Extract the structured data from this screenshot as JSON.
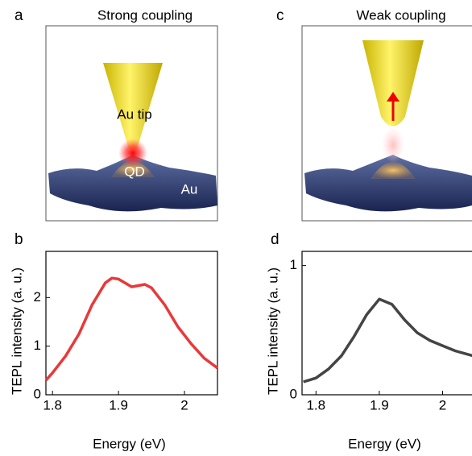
{
  "panels": {
    "a": "a",
    "c": "c",
    "b": "b",
    "d": "d"
  },
  "illustrations": {
    "strong_title": "Strong coupling",
    "weak_title": "Weak coupling",
    "tip_label": "Au tip",
    "qd_label": "QD",
    "au_label": "Au"
  },
  "chart_data": [
    {
      "type": "line",
      "x_label": "Energy (eV)",
      "y_label": "TEPL intensity (a. u.)",
      "color": "#e8393a",
      "x": [
        1.79,
        1.8,
        1.82,
        1.84,
        1.86,
        1.88,
        1.89,
        1.9,
        1.92,
        1.94,
        1.95,
        1.97,
        1.99,
        2.01,
        2.03,
        2.05
      ],
      "values": [
        0.3,
        0.45,
        0.8,
        1.25,
        1.85,
        2.3,
        2.4,
        2.38,
        2.22,
        2.27,
        2.2,
        1.85,
        1.4,
        1.05,
        0.75,
        0.55
      ],
      "xlim": [
        1.79,
        2.05
      ],
      "ylim": [
        0,
        2.95
      ],
      "xticks": [
        1.8,
        1.9,
        2.0
      ],
      "yticks": [
        0,
        1,
        2
      ]
    },
    {
      "type": "line",
      "x_label": "Energy (eV)",
      "y_label": "TEPL intensity (a. u.)",
      "color": "#444444",
      "x": [
        1.78,
        1.8,
        1.82,
        1.84,
        1.86,
        1.88,
        1.9,
        1.92,
        1.94,
        1.96,
        1.98,
        2.0,
        2.02,
        2.049
      ],
      "values": [
        0.1,
        0.13,
        0.2,
        0.3,
        0.45,
        0.62,
        0.74,
        0.7,
        0.58,
        0.48,
        0.42,
        0.38,
        0.34,
        0.3
      ],
      "xlim": [
        1.778,
        2.049
      ],
      "ylim": [
        0,
        1.11
      ],
      "xticks": [
        1.8,
        1.9,
        2.0
      ],
      "yticks": [
        0,
        1
      ]
    }
  ]
}
